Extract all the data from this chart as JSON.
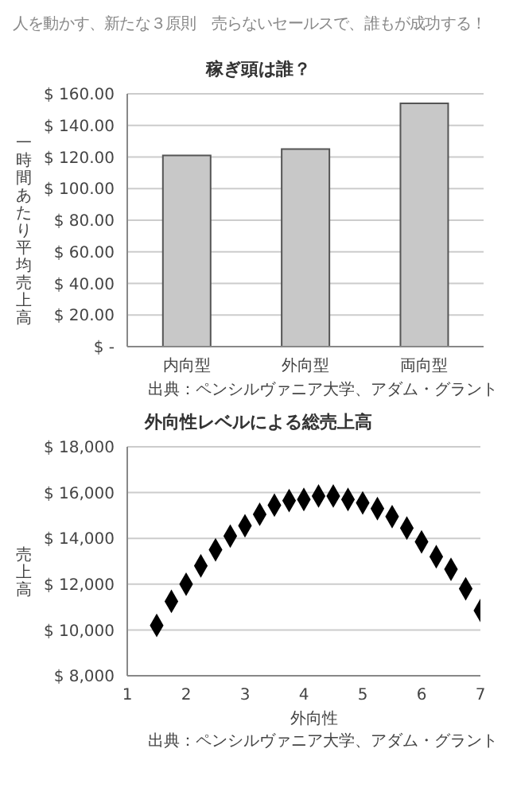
{
  "chart_data": [
    {
      "type": "bar",
      "subtitle": "人を動かす、新たな３原則　売らないセールスで、誰もが成功する！",
      "title": "稼ぎ頭は誰？",
      "ylabel": "一時間あたり平均売上高",
      "categories": [
        "内向型",
        "外向型",
        "両向型"
      ],
      "values": [
        121,
        125,
        154
      ],
      "color": "#c8c8c8",
      "ylim": [
        0,
        160
      ],
      "yticks": [
        {
          "value": 0,
          "label": "$ -"
        },
        {
          "value": 20,
          "label": "$ 20.00"
        },
        {
          "value": 40,
          "label": "$ 40.00"
        },
        {
          "value": 60,
          "label": "$ 60.00"
        },
        {
          "value": 80,
          "label": "$ 80.00"
        },
        {
          "value": 100,
          "label": "$ 100.00"
        },
        {
          "value": 120,
          "label": "$ 120.00"
        },
        {
          "value": 140,
          "label": "$ 140.00"
        },
        {
          "value": 160,
          "label": "$ 160.00"
        }
      ],
      "grid": "y",
      "annotations": [
        "出典：ペンシルヴァニア大学、アダム・グラント"
      ]
    },
    {
      "type": "scatter",
      "title": "外向性レベルによる総売上高",
      "xlabel": "外向性",
      "ylabel": "売上高",
      "x": [
        1.5,
        1.75,
        2,
        2.25,
        2.5,
        2.75,
        3,
        3.25,
        3.5,
        3.75,
        4,
        4.25,
        4.5,
        4.75,
        5,
        5.25,
        5.5,
        5.75,
        6,
        6.25,
        6.5,
        6.75,
        7
      ],
      "values": [
        10200,
        11250,
        12000,
        12800,
        13500,
        14100,
        14550,
        15050,
        15450,
        15650,
        15700,
        15850,
        15850,
        15700,
        15550,
        15300,
        14950,
        14450,
        13850,
        13200,
        12650,
        11800,
        10850
      ],
      "color": "#000000",
      "marker": "diamond",
      "xlim": [
        1,
        7
      ],
      "xticks": [
        1,
        2,
        3,
        4,
        5,
        6,
        7
      ],
      "ylim": [
        8000,
        18000
      ],
      "yticks": [
        {
          "value": 8000,
          "label": "$ 8,000"
        },
        {
          "value": 10000,
          "label": "$ 10,000"
        },
        {
          "value": 12000,
          "label": "$ 12,000"
        },
        {
          "value": 14000,
          "label": "$ 14,000"
        },
        {
          "value": 16000,
          "label": "$ 16,000"
        },
        {
          "value": 18000,
          "label": "$ 18,000"
        }
      ],
      "grid": "y",
      "annotations": [
        "出典：ペンシルヴァニア大学、アダム・グラント"
      ]
    }
  ]
}
